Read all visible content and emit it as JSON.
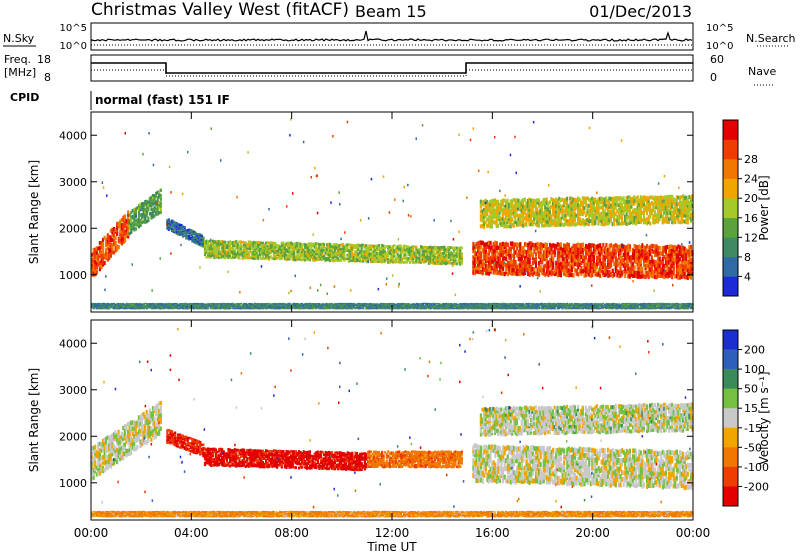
{
  "header": {
    "title": "Christmas Valley West (fitACF)",
    "beam": "Beam 15",
    "date": "01/Dec/2013"
  },
  "strips": {
    "nsky_label": "N.Sky",
    "nsearch_label": "N.Search",
    "nsky_ticks": [
      "10^5",
      "10^0"
    ],
    "freq_label_top": "Freq.",
    "freq_label_bottom": "[MHz]",
    "freq_ticks": [
      "18",
      "8"
    ],
    "nave_label": "Nave",
    "nave_ticks": [
      "60",
      "0"
    ],
    "cpid_label": "CPID",
    "cpid_text": "normal (fast) 151 IF"
  },
  "colors": {
    "power_scale": [
      "#1c2bd6",
      "#2f6aa5",
      "#3f8a63",
      "#5aa33c",
      "#a6c92a",
      "#f0a500",
      "#f07800",
      "#ef3c00",
      "#e30000"
    ],
    "velocity_scale": [
      "#1b2fd0",
      "#2f5fb8",
      "#3b8a5a",
      "#74c142",
      "#c9c9c9",
      "#f0a500",
      "#f07800",
      "#ef3c00",
      "#e30000"
    ]
  },
  "chart_data": [
    {
      "type": "heatmap",
      "name": "power",
      "ylabel": "Slant Range [km]",
      "ylim": [
        200,
        4500
      ],
      "yticks": [
        1000,
        2000,
        3000,
        4000
      ],
      "xlim": [
        0,
        24
      ],
      "colorbar": {
        "label": "Power [dB]",
        "ticks": [
          "4",
          "8",
          "12",
          "16",
          "20",
          "24",
          "28"
        ]
      },
      "bands": [
        {
          "t0": 0.0,
          "t1": 1.5,
          "r_center": [
            1200,
            2100
          ],
          "r_width": 600,
          "value": 26
        },
        {
          "t0": 1.5,
          "t1": 2.8,
          "r_center": [
            2100,
            2600
          ],
          "r_width": 500,
          "value": 11
        },
        {
          "t0": 3.0,
          "t1": 4.5,
          "r_center": [
            2100,
            1700
          ],
          "r_width": 250,
          "value": 6
        },
        {
          "t0": 4.5,
          "t1": 14.8,
          "r_center": [
            1550,
            1400
          ],
          "r_width": 380,
          "value": 15
        },
        {
          "t0": 15.2,
          "t1": 24.0,
          "r_center": [
            1350,
            1250
          ],
          "r_width": 700,
          "value": 27
        },
        {
          "t0": 15.5,
          "t1": 24.0,
          "r_center": [
            2300,
            2400
          ],
          "r_width": 600,
          "value": 17
        },
        {
          "t0": 0.0,
          "t1": 24.0,
          "r_center": [
            330,
            330
          ],
          "r_width": 120,
          "value": 8
        }
      ]
    },
    {
      "type": "heatmap",
      "name": "velocity",
      "xlabel": "Time UT",
      "ylabel": "Slant Range [km]",
      "ylim": [
        200,
        4500
      ],
      "yticks": [
        1000,
        2000,
        3000,
        4000
      ],
      "xlim": [
        0,
        24
      ],
      "xticks": [
        "00:00",
        "04:00",
        "08:00",
        "12:00",
        "16:00",
        "20:00",
        "00:00"
      ],
      "colorbar": {
        "label": "Velocity [m s⁻¹]",
        "ticks": [
          "200",
          "100",
          "50",
          "15",
          "-15",
          "-50",
          "-100",
          "-200"
        ]
      },
      "bands": [
        {
          "t0": 0.0,
          "t1": 2.8,
          "r_center": [
            1400,
            2400
          ],
          "r_width": 700,
          "value": 0
        },
        {
          "t0": 3.0,
          "t1": 4.5,
          "r_center": [
            2000,
            1700
          ],
          "r_width": 300,
          "value": -150
        },
        {
          "t0": 4.5,
          "t1": 11.0,
          "r_center": [
            1550,
            1450
          ],
          "r_width": 380,
          "value": -170
        },
        {
          "t0": 11.0,
          "t1": 14.8,
          "r_center": [
            1500,
            1500
          ],
          "r_width": 350,
          "value": -60
        },
        {
          "t0": 15.2,
          "t1": 24.0,
          "r_center": [
            1400,
            1250
          ],
          "r_width": 800,
          "value": 0
        },
        {
          "t0": 15.5,
          "t1": 24.0,
          "r_center": [
            2300,
            2400
          ],
          "r_width": 600,
          "value": 5
        },
        {
          "t0": 0.0,
          "t1": 24.0,
          "r_center": [
            330,
            330
          ],
          "r_width": 120,
          "value": -40
        }
      ]
    }
  ]
}
